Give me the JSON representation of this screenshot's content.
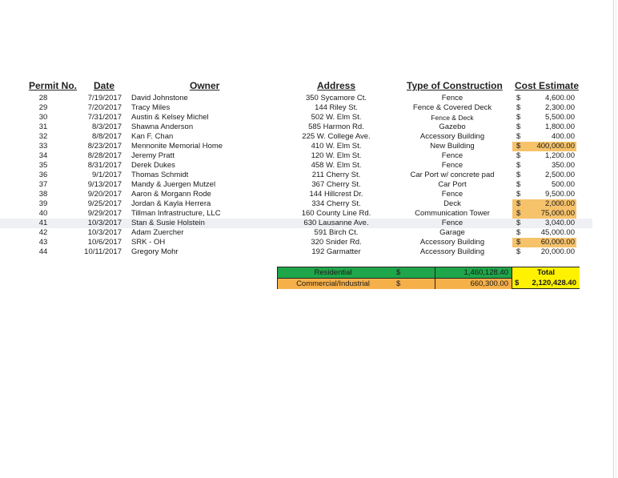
{
  "headers": {
    "permit": "Permit No.",
    "date": "Date",
    "owner": "Owner",
    "address": "Address",
    "type": "Type of Construction",
    "cost": "Cost Estimate"
  },
  "rows": [
    {
      "permit": "28",
      "date": "7/19/2017",
      "owner": "David  Johnstone",
      "address": "350 Sycamore Ct.",
      "type": "Fence",
      "dollar": "$",
      "cost": "4,600.00"
    },
    {
      "permit": "29",
      "date": "7/20/2017",
      "owner": "Tracy Miles",
      "address": "144 Riley St.",
      "type": "Fence & Covered Deck",
      "dollar": "$",
      "cost": "2,300.00"
    },
    {
      "permit": "30",
      "date": "7/31/2017",
      "owner": "Austin & Kelsey Michel",
      "address": "502 W. Elm St.",
      "type": "Fence & Deck",
      "dollar": "$",
      "cost": "5,500.00"
    },
    {
      "permit": "31",
      "date": "8/3/2017",
      "owner": " Shawna Anderson",
      "address": "585 Harmon Rd.",
      "type": "Gazebo",
      "dollar": "$",
      "cost": "1,800.00"
    },
    {
      "permit": "32",
      "date": "8/8/2017",
      "owner": "Kan F. Chan",
      "address": "225 W. College Ave.",
      "type": "Accessory Building",
      "dollar": "$",
      "cost": "400.00"
    },
    {
      "permit": "33",
      "date": "8/23/2017",
      "owner": "Mennonite Memorial Home",
      "address": "410 W. Elm St.",
      "type": "New Building",
      "dollar": "$",
      "cost": "400,000.00"
    },
    {
      "permit": "34",
      "date": "8/28/2017",
      "owner": "Jeremy Pratt",
      "address": "120 W. Elm St.",
      "type": "Fence",
      "dollar": "$",
      "cost": "1,200.00"
    },
    {
      "permit": "35",
      "date": "8/31/2017",
      "owner": "Derek Dukes",
      "address": "458 W. Elm St.",
      "type": "Fence",
      "dollar": "$",
      "cost": "350.00"
    },
    {
      "permit": "36",
      "date": "9/1/2017",
      "owner": "Thomas Schmidt",
      "address": "211 Cherry St.",
      "type": "Car Port w/ concrete pad",
      "dollar": "$",
      "cost": "2,500.00"
    },
    {
      "permit": "37",
      "date": "9/13/2017",
      "owner": "Mandy & Juergen Mutzel",
      "address": "367 Cherry St.",
      "type": "Car Port",
      "dollar": "$",
      "cost": "500.00"
    },
    {
      "permit": "38",
      "date": "9/20/2017",
      "owner": "Aaron & Morgann Rode",
      "address": "144 Hillcrest Dr.",
      "type": "Fence",
      "dollar": "$",
      "cost": "9,500.00"
    },
    {
      "permit": "39",
      "date": "9/25/2017",
      "owner": "Jordan & Kayla Herrera",
      "address": "334 Cherry St.",
      "type": "Deck",
      "dollar": "$",
      "cost": "2,000.00"
    },
    {
      "permit": "40",
      "date": "9/29/2017",
      "owner": "Tillman Infrastructure, LLC",
      "address": "160 County Line Rd.",
      "type": "Communication Tower",
      "dollar": "$",
      "cost": "75,000.00"
    },
    {
      "permit": "41",
      "date": "10/3/2017",
      "owner": "Stan & Susie Holstein",
      "address": "630 Lausanne Ave.",
      "type": "Fence",
      "dollar": "$",
      "cost": "3,040.00"
    },
    {
      "permit": "42",
      "date": "10/3/2017",
      "owner": "Adam Zuercher",
      "address": "591 Birch Ct.",
      "type": "Garage",
      "dollar": "$",
      "cost": "45,000.00"
    },
    {
      "permit": "43",
      "date": "10/6/2017",
      "owner": "SRK - OH",
      "address": "320 Snider Rd.",
      "type": "Accessory Building",
      "dollar": "$",
      "cost": "60,000.00"
    },
    {
      "permit": "44",
      "date": "10/11/2017",
      "owner": "Gregory Mohr",
      "address": "192 Garmatter",
      "type": "Accessory Building",
      "dollar": "$",
      "cost": "20,000.00"
    }
  ],
  "summary": {
    "residential_label": "Residential",
    "residential_dollar": "$",
    "residential_value": "1,460,128.40",
    "commercial_label": "Commercial/Industrial",
    "commercial_dollar": "$",
    "commercial_value": "660,300.00",
    "total_label": "Total",
    "total_dollar": "$",
    "total_value": "2,120,428.40"
  },
  "colors": {
    "commercial_highlight": "#f6c26a",
    "residential_fill": "#1fa64a",
    "commercial_fill": "#f6b04a",
    "total_fill": "#fff200",
    "selected_row": "#eef0f3"
  }
}
